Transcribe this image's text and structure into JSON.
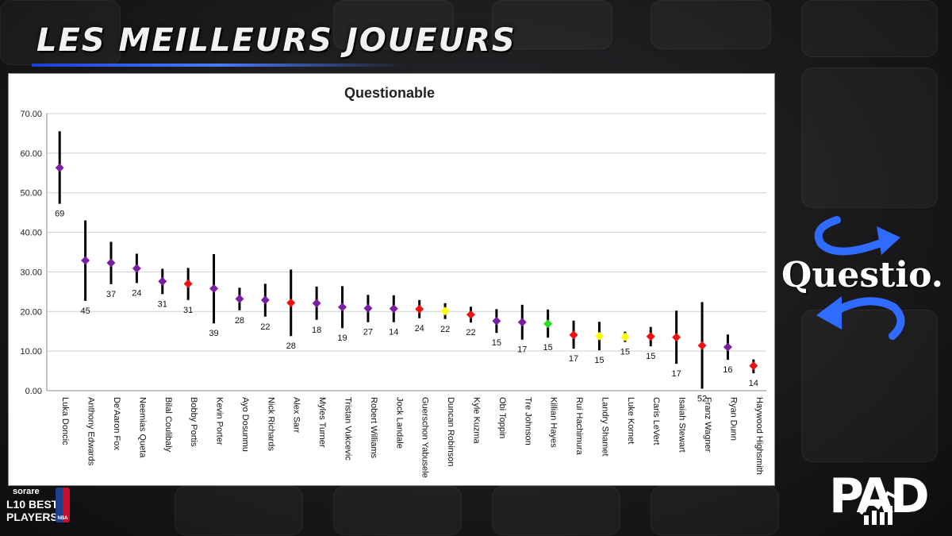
{
  "header": {
    "title": "LES MEILLEURS JOUEURS"
  },
  "brand": {
    "name": "Questio."
  },
  "badge": {
    "brand": "sorare",
    "line1": "L10 BEST",
    "line2": "PLAYERS",
    "league": "NBA"
  },
  "corner_logo": {
    "text": "PAD"
  },
  "colors": {
    "purple": "#7a1fa2",
    "red": "#ee1111",
    "yellow": "#ffff00",
    "green": "#22dd22",
    "accent_blue": "#2f6bff"
  },
  "chart_data": {
    "type": "scatter",
    "title": "Questionable",
    "xlabel": "",
    "ylabel": "",
    "ylim": [
      0,
      70
    ],
    "yticks": [
      "0.00",
      "10.00",
      "20.00",
      "30.00",
      "40.00",
      "50.00",
      "60.00",
      "70.00"
    ],
    "grid": true,
    "legend": "none",
    "points": [
      {
        "player": "Luka Doncic",
        "value": 56.3,
        "low": 47.2,
        "high": 65.5,
        "label": "69",
        "color": "purple"
      },
      {
        "player": "Anthony Edwards",
        "value": 32.9,
        "low": 22.7,
        "high": 43.0,
        "label": "45",
        "color": "purple"
      },
      {
        "player": "De'Aaron Fox",
        "value": 32.3,
        "low": 26.9,
        "high": 37.6,
        "label": "37",
        "color": "purple"
      },
      {
        "player": "Neemias Queta",
        "value": 30.9,
        "low": 27.2,
        "high": 34.6,
        "label": "24",
        "color": "purple"
      },
      {
        "player": "Bilal Coulibaly",
        "value": 27.6,
        "low": 24.4,
        "high": 30.8,
        "label": "31",
        "color": "purple"
      },
      {
        "player": "Bobby Portis",
        "value": 27.0,
        "low": 22.9,
        "high": 31.0,
        "label": "31",
        "color": "red"
      },
      {
        "player": "Kevin Porter",
        "value": 25.8,
        "low": 17.0,
        "high": 34.5,
        "label": "39",
        "color": "purple"
      },
      {
        "player": "Ayo Dosunmu",
        "value": 23.2,
        "low": 20.3,
        "high": 26.0,
        "label": "28",
        "color": "purple"
      },
      {
        "player": "Nick Richards",
        "value": 22.9,
        "low": 18.7,
        "high": 27.0,
        "label": "22",
        "color": "purple"
      },
      {
        "player": "Alex Sarr",
        "value": 22.2,
        "low": 13.8,
        "high": 30.6,
        "label": "28",
        "color": "red"
      },
      {
        "player": "Myles Turner",
        "value": 22.1,
        "low": 17.9,
        "high": 26.3,
        "label": "18",
        "color": "purple"
      },
      {
        "player": "Tristan Vukcevic",
        "value": 21.1,
        "low": 15.8,
        "high": 26.4,
        "label": "19",
        "color": "purple"
      },
      {
        "player": "Robert Williams",
        "value": 20.8,
        "low": 17.3,
        "high": 24.2,
        "label": "27",
        "color": "purple"
      },
      {
        "player": "Jock Landale",
        "value": 20.7,
        "low": 17.3,
        "high": 24.1,
        "label": "14",
        "color": "purple"
      },
      {
        "player": "Guerschon Yabusele",
        "value": 20.6,
        "low": 18.3,
        "high": 22.9,
        "label": "24",
        "color": "red"
      },
      {
        "player": "Duncan Robinson",
        "value": 20.1,
        "low": 18.1,
        "high": 22.1,
        "label": "22",
        "color": "yellow"
      },
      {
        "player": "Kyle Kuzma",
        "value": 19.2,
        "low": 17.2,
        "high": 21.2,
        "label": "22",
        "color": "red"
      },
      {
        "player": "Obi Toppin",
        "value": 17.6,
        "low": 14.6,
        "high": 20.6,
        "label": "15",
        "color": "purple"
      },
      {
        "player": "Tre Johnson",
        "value": 17.3,
        "low": 12.9,
        "high": 21.7,
        "label": "17",
        "color": "purple"
      },
      {
        "player": "Killian Hayes",
        "value": 16.9,
        "low": 13.4,
        "high": 20.5,
        "label": "15",
        "color": "green"
      },
      {
        "player": "Rui Hachimura",
        "value": 14.1,
        "low": 10.6,
        "high": 17.7,
        "label": "17",
        "color": "red"
      },
      {
        "player": "Landry Shamet",
        "value": 13.8,
        "low": 10.2,
        "high": 17.4,
        "label": "15",
        "color": "yellow"
      },
      {
        "player": "Luke Kornet",
        "value": 13.6,
        "low": 12.3,
        "high": 14.9,
        "label": "15",
        "color": "yellow"
      },
      {
        "player": "Caris LeVert",
        "value": 13.7,
        "low": 11.2,
        "high": 16.1,
        "label": "15",
        "color": "red"
      },
      {
        "player": "Isaiah Stewart",
        "value": 13.5,
        "low": 6.8,
        "high": 20.2,
        "label": "17",
        "color": "red"
      },
      {
        "player": "Franz Wagner",
        "value": 11.4,
        "low": 0.5,
        "high": 22.4,
        "label": "52",
        "color": "red"
      },
      {
        "player": "Ryan Dunn",
        "value": 11.0,
        "low": 7.8,
        "high": 14.2,
        "label": "16",
        "color": "purple"
      },
      {
        "player": "Haywood Highsmith",
        "value": 6.3,
        "low": 4.4,
        "high": 7.9,
        "label": "14",
        "color": "red"
      }
    ]
  }
}
